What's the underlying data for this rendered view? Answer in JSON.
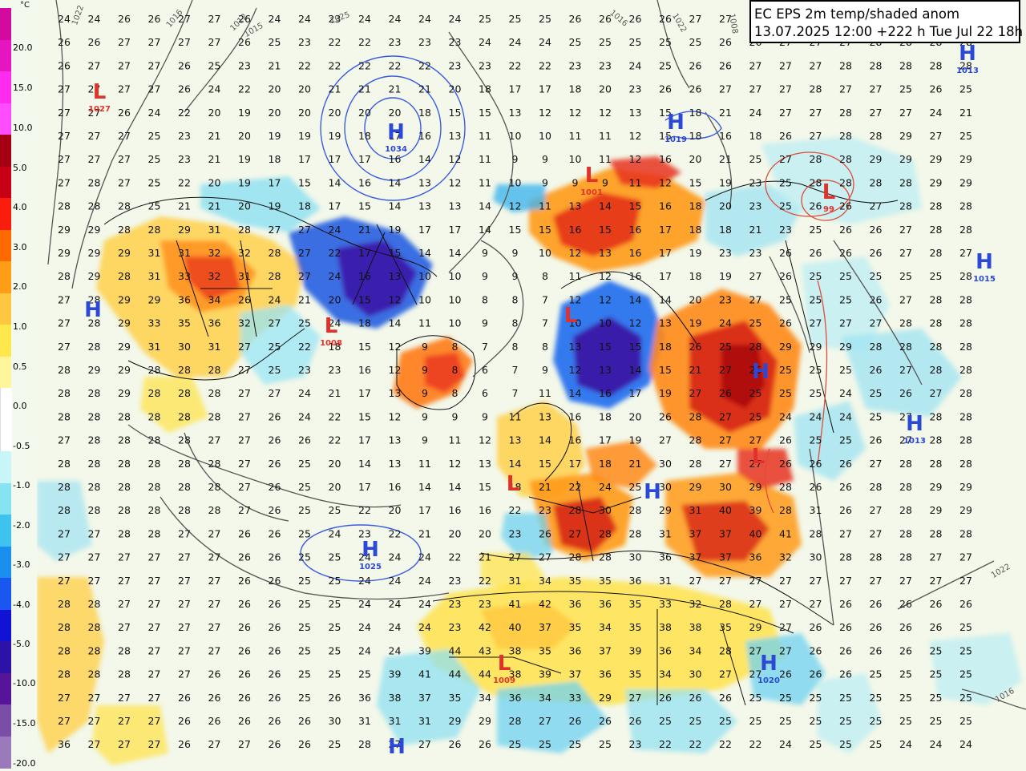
{
  "title_box": {
    "line1": "EC EPS 2m temp/shaded anom",
    "line2": "13.07.2025 12:00 +222 h Tue Jul 22 18h"
  },
  "legend": {
    "unit": "°C",
    "labels": [
      "20.0",
      "15.0",
      "10.0",
      "5.0",
      "4.0",
      "3.0",
      "2.0",
      "1.0",
      "0.5",
      "0.0",
      "-0.5",
      "-1.0",
      "-2.0",
      "-3.0",
      "-4.0",
      "-5.0",
      "-10.0",
      "-15.0",
      "-20.0"
    ],
    "colors": [
      "#d30aa0",
      "#e516c1",
      "#ff2bf0",
      "#ff4cff",
      "#a50012",
      "#c80015",
      "#fa1c0c",
      "#ff6a00",
      "#ff9e16",
      "#ffc740",
      "#ffe84b",
      "#fff69c",
      "#ffffff",
      "#ffffff",
      "#c8f5f7",
      "#86e3f2",
      "#3ec3ee",
      "#1b8ff0",
      "#1a57f0",
      "#1212d4",
      "#2d12a8",
      "#55149a",
      "#7a4da6",
      "#9a7abb"
    ]
  },
  "pressure_centers": [
    {
      "type": "H",
      "value": "1034",
      "color": "#2b49d6"
    },
    {
      "type": "H",
      "value": "1019",
      "color": "#2b49d6"
    },
    {
      "type": "H",
      "value": "1013",
      "color": "#2b49d6"
    },
    {
      "type": "H",
      "value": "1015",
      "color": "#2b49d6"
    },
    {
      "type": "H",
      "value": "1013",
      "color": "#2b49d6"
    },
    {
      "type": "H",
      "value": "1025",
      "color": "#2b49d6"
    },
    {
      "type": "H",
      "value": "1020",
      "color": "#2b49d6"
    },
    {
      "type": "H",
      "value": "",
      "color": "#2b49d6"
    },
    {
      "type": "H",
      "value": "",
      "color": "#2b49d6"
    },
    {
      "type": "H",
      "value": "",
      "color": "#2b49d6"
    },
    {
      "type": "H",
      "value": "",
      "color": "#2b49d6"
    },
    {
      "type": "L",
      "value": "1027",
      "color": "#e0322a"
    },
    {
      "type": "L",
      "value": "1001",
      "color": "#e0322a"
    },
    {
      "type": "L",
      "value": "1008",
      "color": "#e0322a"
    },
    {
      "type": "L",
      "value": "99",
      "color": "#e0322a"
    },
    {
      "type": "L",
      "value": "",
      "color": "#e0322a"
    },
    {
      "type": "L",
      "value": "1009",
      "color": "#e0322a"
    },
    {
      "type": "L",
      "value": "",
      "color": "#e0322a"
    },
    {
      "type": "L",
      "value": "",
      "color": "#e0322a"
    }
  ],
  "isobar_labels": [
    "1022",
    "1016",
    "1012",
    "1015",
    "1025",
    "1016",
    "1022",
    "1008",
    "1022",
    "1016"
  ],
  "temperature_rows": [
    "24 24 26 26 27 27 26 24 24 23 24 24 24 24 25 25 25 26 26 26 26 27 27 27 27 27 28 28 28 28 28",
    "26 26 27 27 27 27 26 25 23 22 22 23 23 23 24 24 24 25 25 25 25 25 26 26 27 27 27 28 28 28 28",
    "26 27 27 27 26 25 23 21 22 22 22 22 22 23 23 22 22 23 23 24 25 26 26 27 27 27 28 28 28 28 28",
    "27 27 27 27 26 24 22 20 20 21 21 21 21 20 18 17 17 18 20 23 26 26 27 27 27 28 27 27 25 26 25",
    "27 27 26 24 22 20 19 20 20 20 20 20 18 15 15 13 12 12 12 13 15 18 21 24 27 27 28 27 27 24 21",
    "27 27 27 25 23 21 20 19 19 19 18 17 16 13 11 10 10 11 11 12 15 18 16 18 26 27 28 28 29 27 25",
    "27 27 27 25 23 21 19 18 17 17 17 16 14 12 11 9 9 10 11 12 16 20 21 25 27 28 28 29 29 29 29",
    "27 28 27 25 22 20 19 17 15 14 16 14 13 12 11 10 9 9 9 11 12 15 19 23 25 28 28 28 28 29 29",
    "28 28 28 25 21 21 20 19 18 17 15 14 13 13 14 12 11 13 14 15 16 18 20 23 25 26 26 27 28 28 28",
    "29 29 28 28 29 31 28 27 27 24 21 19 17 17 14 15 15 16 15 16 17 18 18 21 23 25 26 26 27 28 28",
    "29 29 29 31 31 32 32 28 27 22 17 15 14 14 9 9 10 12 13 16 17 19 23 23 26 26 26 26 27 28 27",
    "28 29 28 31 33 32 31 28 27 24 16 13 10 10 9 9 8 11 12 16 17 18 19 27 26 25 25 25 25 25 28",
    "27 28 29 29 36 34 26 24 21 20 15 12 10 10 8 8 7 12 12 14 14 20 23 27 25 25 25 26 27 28 28",
    "27 28 29 33 35 36 32 27 25 24 18 14 11 10 9 8 7 10 10 12 13 19 24 25 26 27 27 27 28 28 28",
    "27 28 29 31 30 31 27 25 22 18 15 12 9 8 7 8 8 13 15 15 18 26 25 28 29 29 29 28 28 28 28",
    "28 29 29 28 28 28 27 25 23 23 16 12 9 8 6 7 9 12 13 14 15 21 27 26 25 25 25 26 27 28 28",
    "28 28 29 28 28 28 27 27 24 21 17 13 9 8 6 7 11 14 16 17 19 27 26 25 25 25 24 25 26 27 28",
    "28 28 28 28 28 28 27 26 24 22 15 12 9 9 9 11 13 16 18 20 26 28 27 25 24 24 24 25 27 28 28",
    "27 28 28 28 28 27 27 26 26 22 17 13 9 11 12 13 14 16 17 19 27 28 27 27 26 25 25 26 27 28 28",
    "28 28 28 28 28 28 27 26 25 20 14 13 11 12 13 14 15 17 18 21 30 28 27 27 26 26 26 27 28 28 28",
    "28 28 28 28 28 28 27 26 25 20 17 16 14 14 15 18 21 22 24 25 30 29 30 29 28 26 26 28 28 29 29",
    "28 28 28 28 28 28 27 26 25 25 22 20 17 16 16 22 23 28 30 28 29 31 40 39 28 31 26 27 28 29 29",
    "27 27 28 28 27 27 26 26 25 24 23 22 21 20 20 23 26 27 28 28 31 37 37 40 41 28 27 27 28 28 28",
    "27 27 27 27 27 27 26 26 25 25 24 24 24 22 21 27 27 28 28 30 36 37 37 36 32 30 28 28 28 27 27",
    "27 27 27 27 27 27 26 26 25 25 24 24 24 23 22 31 34 35 35 36 31 27 27 27 27 27 27 27 27 27 27",
    "28 28 27 27 27 27 26 26 25 25 24 24 24 23 23 41 42 36 36 35 33 32 28 27 27 27 26 26 26 26 26",
    "28 28 27 27 27 27 26 26 25 25 24 24 24 23 42 40 37 35 34 35 38 38 35 29 27 26 26 26 26 26 25",
    "28 28 28 27 27 27 26 26 25 25 24 24 39 44 43 38 35 36 37 39 36 34 28 27 27 26 26 26 26 25 25",
    "28 28 28 27 27 26 26 26 25 25 25 39 41 44 44 38 39 37 36 35 34 30 27 27 26 26 26 25 25 25 25",
    "27 27 27 27 26 26 26 26 25 26 36 38 37 35 34 36 34 33 29 27 26 26 26 25 25 25 25 25 25 25 25",
    "27 27 27 27 26 26 26 26 26 30 31 31 31 29 29 28 27 26 26 26 25 25 25 25 25 25 25 25 25 25 25",
    "36 27 27 27 26 27 27 26 26 25 28 27 27 26 26 25 25 25 25 23 22 22 22 22 24 25 25 25 24 24 24"
  ]
}
